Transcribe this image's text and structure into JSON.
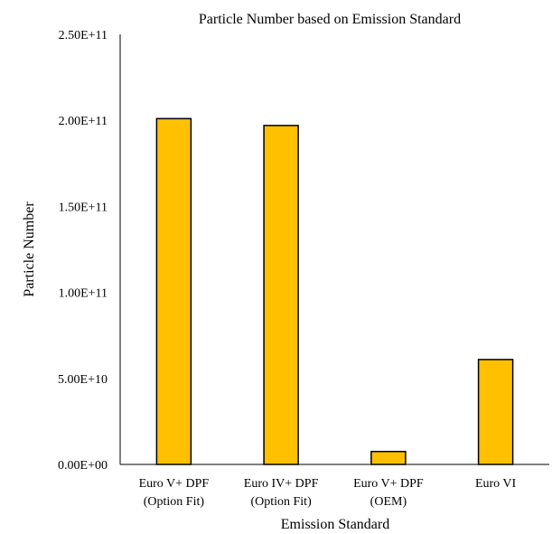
{
  "chart_data": {
    "type": "bar",
    "title": "Particle Number based on Emission Standard",
    "xlabel": "Emission Standard",
    "ylabel": "Particle Number",
    "categories": [
      [
        "Euro V+ DPF",
        "(Option Fit)"
      ],
      [
        "Euro IV+ DPF",
        "(Option Fit)"
      ],
      [
        "Euro V+ DPF",
        "(OEM)"
      ],
      [
        "Euro VI"
      ]
    ],
    "values": [
      201000000000,
      197000000000,
      7500000000,
      61000000000
    ],
    "ylim": [
      0,
      250000000000
    ],
    "yticks": [
      0,
      50000000000,
      100000000000,
      150000000000,
      200000000000,
      250000000000
    ],
    "ytick_labels": [
      "0.00E+00",
      "5.00E+10",
      "1.00E+11",
      "1.50E+11",
      "2.00E+11",
      "2.50E+11"
    ],
    "grid": false,
    "legend": "none",
    "bar_color": "#FFC000",
    "bar_edge_color": "#000000"
  }
}
